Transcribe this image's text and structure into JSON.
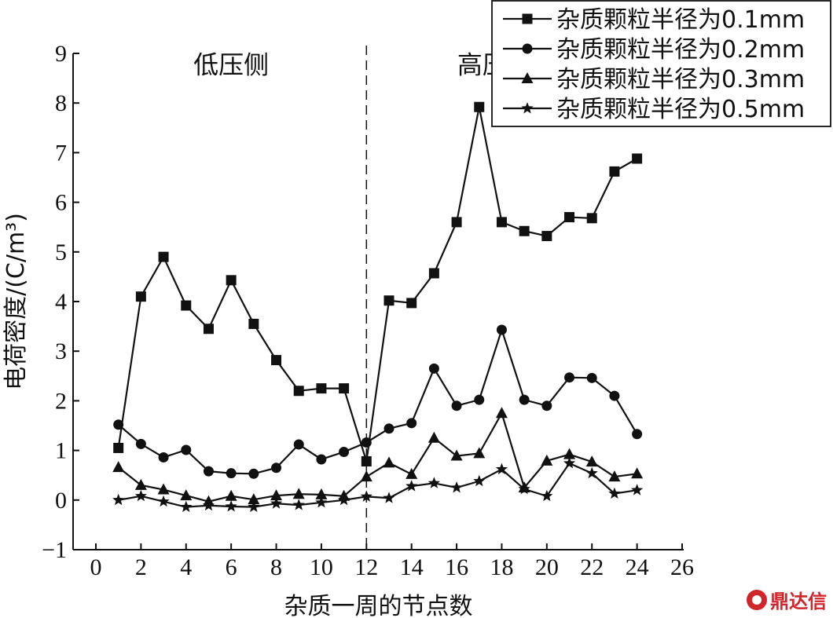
{
  "chart_data": {
    "type": "line",
    "title": "",
    "xlabel": "杂质一周的节点数",
    "ylabel": "电荷密度/(C/m³)",
    "xlim": [
      0,
      26
    ],
    "ylim": [
      -1,
      9
    ],
    "x_ticks": [
      0,
      2,
      4,
      6,
      8,
      10,
      12,
      14,
      16,
      18,
      20,
      22,
      24,
      26
    ],
    "y_ticks": [
      -1,
      0,
      1,
      2,
      3,
      4,
      5,
      6,
      7,
      8,
      9
    ],
    "grid": false,
    "legend_position": "top-right",
    "divider_x": 12,
    "regions": [
      {
        "label": "低压侧",
        "x": 6,
        "y": 8.6
      },
      {
        "label": "高压侧",
        "x": 17.7,
        "y": 8.6
      }
    ],
    "x": [
      1,
      2,
      3,
      4,
      5,
      6,
      7,
      8,
      9,
      10,
      11,
      12,
      13,
      14,
      15,
      16,
      17,
      18,
      19,
      20,
      21,
      22,
      23,
      24
    ],
    "series": [
      {
        "name": "杂质颗粒半径为0.1mm",
        "marker": "square",
        "values": [
          1.05,
          4.1,
          4.9,
          3.92,
          3.45,
          4.43,
          3.55,
          2.82,
          2.2,
          2.25,
          2.25,
          0.78,
          4.02,
          3.97,
          4.57,
          5.6,
          7.92,
          5.6,
          5.42,
          5.32,
          5.7,
          5.68,
          6.62,
          6.88
        ]
      },
      {
        "name": "杂质颗粒半径为0.2mm",
        "marker": "circle",
        "values": [
          1.52,
          1.13,
          0.86,
          1.01,
          0.58,
          0.54,
          0.53,
          0.65,
          1.12,
          0.82,
          0.97,
          1.16,
          1.44,
          1.55,
          2.65,
          1.9,
          2.02,
          3.43,
          2.02,
          1.9,
          2.47,
          2.46,
          2.1,
          1.33
        ]
      },
      {
        "name": "杂质颗粒半径为0.3mm",
        "marker": "triangle",
        "values": [
          0.66,
          0.3,
          0.21,
          0.09,
          -0.03,
          0.08,
          0.01,
          0.09,
          0.12,
          0.11,
          0.08,
          0.47,
          0.75,
          0.52,
          1.25,
          0.89,
          0.94,
          1.75,
          0.25,
          0.79,
          0.92,
          0.77,
          0.47,
          0.53
        ]
      },
      {
        "name": "杂质颗粒半径为0.5mm",
        "marker": "star",
        "values": [
          0.0,
          0.08,
          -0.03,
          -0.14,
          -0.11,
          -0.13,
          -0.14,
          -0.07,
          -0.1,
          -0.05,
          0.0,
          0.07,
          0.04,
          0.28,
          0.34,
          0.25,
          0.38,
          0.62,
          0.22,
          0.08,
          0.74,
          0.54,
          0.13,
          0.2
        ]
      }
    ]
  },
  "watermark": {
    "text": "鼎达信"
  }
}
